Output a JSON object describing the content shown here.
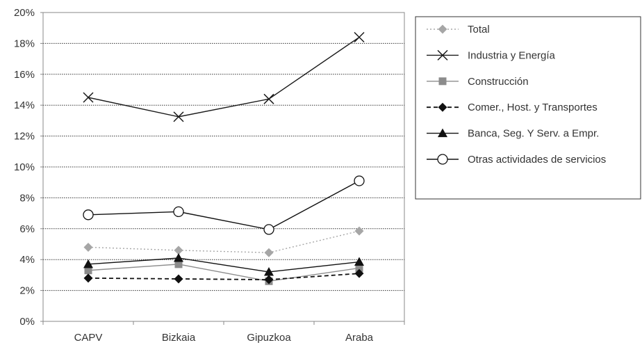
{
  "chart_data": {
    "type": "line",
    "categories": [
      "CAPV",
      "Bizkaia",
      "Gipuzkoa",
      "Araba"
    ],
    "ylim": [
      0,
      20
    ],
    "yticks": [
      0,
      2,
      4,
      6,
      8,
      10,
      12,
      14,
      16,
      18,
      20
    ],
    "ytick_labels": [
      "0%",
      "2%",
      "4%",
      "6%",
      "8%",
      "10%",
      "12%",
      "14%",
      "16%",
      "18%",
      "20%"
    ],
    "grid": true,
    "legend_position": "right",
    "series": [
      {
        "name": "Total",
        "values": [
          4.8,
          4.6,
          4.45,
          5.85
        ],
        "color": "#a6a6a6",
        "marker": "diamond",
        "dash": "dotted"
      },
      {
        "name": "Industria y Energía",
        "values": [
          14.5,
          13.25,
          14.4,
          18.4
        ],
        "color": "#1a1a1a",
        "marker": "cross",
        "dash": "solid"
      },
      {
        "name": "Construcción",
        "values": [
          3.3,
          3.7,
          2.6,
          3.45
        ],
        "color": "#8c8c8c",
        "marker": "square",
        "dash": "solid"
      },
      {
        "name": "Comer., Host. y Transportes",
        "values": [
          2.8,
          2.75,
          2.7,
          3.1
        ],
        "color": "#111111",
        "marker": "diamond",
        "dash": "dashed"
      },
      {
        "name": "Banca, Seg. Y Serv. a Empr.",
        "values": [
          3.7,
          4.1,
          3.2,
          3.85
        ],
        "color": "#111111",
        "marker": "triangle",
        "dash": "solid"
      },
      {
        "name": "Otras actividades de servicios",
        "values": [
          6.9,
          7.1,
          5.95,
          9.1
        ],
        "color": "#111111",
        "marker": "circle",
        "dash": "solid"
      }
    ]
  }
}
